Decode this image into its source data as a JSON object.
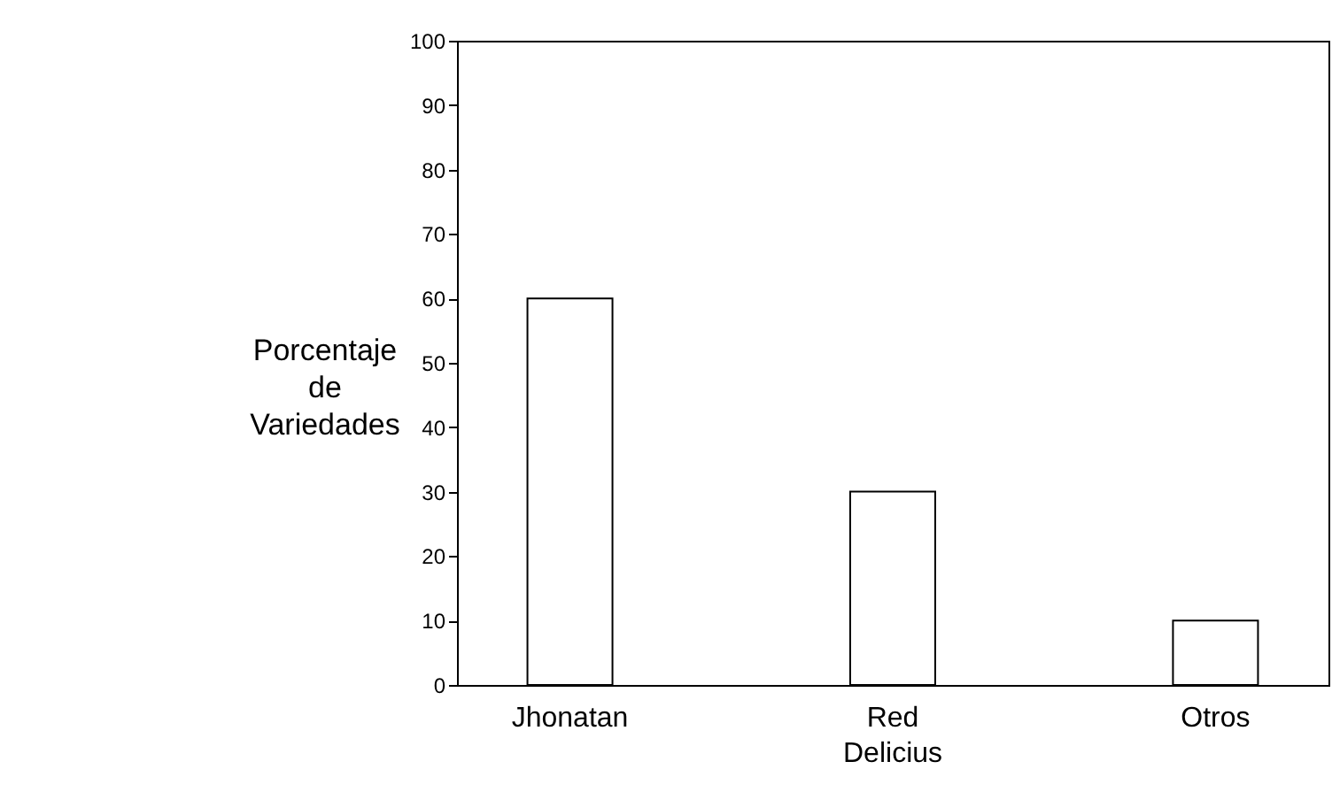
{
  "chart_data": {
    "type": "bar",
    "ylabel": "Porcentaje de Variedades",
    "categories": [
      "Jhonatan",
      "Red Delicius",
      "Otros"
    ],
    "values": [
      60,
      30,
      10
    ],
    "color": "#ffffff",
    "ylim": [
      0,
      100
    ],
    "yticks": [
      0,
      10,
      20,
      30,
      40,
      50,
      60,
      70,
      80,
      90,
      100
    ],
    "grid": false
  }
}
